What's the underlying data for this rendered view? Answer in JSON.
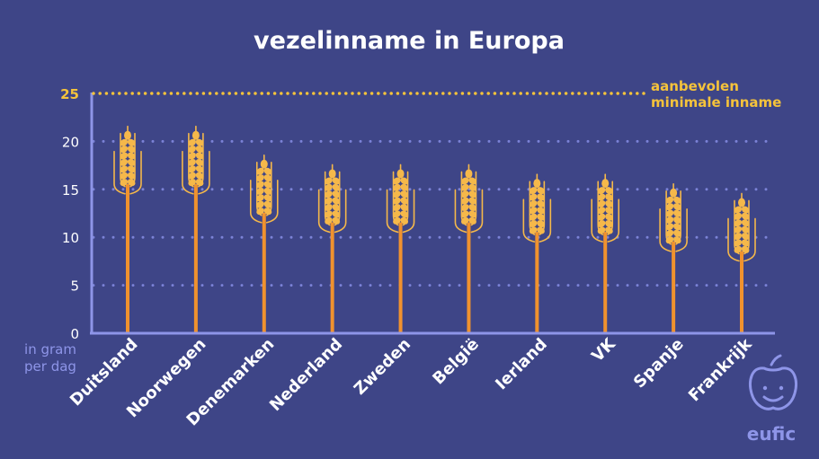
{
  "chart_data": {
    "type": "bar",
    "title": "vezelinname in Europa",
    "ylabel_lines": [
      "in gram",
      "per dag"
    ],
    "ylim": [
      0,
      25
    ],
    "yticks": [
      0,
      5,
      10,
      15,
      20
    ],
    "categories": [
      "Duitsland",
      "Noorwegen",
      "Denemarken",
      "Nederland",
      "Zweden",
      "België",
      "Ierland",
      "VK",
      "Spanje",
      "Frankrijk"
    ],
    "values": [
      21,
      21,
      18,
      17,
      17,
      17,
      16,
      16,
      15,
      14
    ],
    "reference": {
      "value": 25,
      "value_label": "25",
      "label_lines": [
        "aanbevolen",
        "minimale inname"
      ]
    },
    "colors": {
      "background": "#3e4587",
      "stalk": "#f0922e",
      "grain": "#f5b84a",
      "axis": "#8e95e8",
      "grid": "#7b82d6",
      "reference": "#f5c33b"
    }
  },
  "logo": {
    "text": "eufic",
    "icon": "apple-face-icon"
  }
}
